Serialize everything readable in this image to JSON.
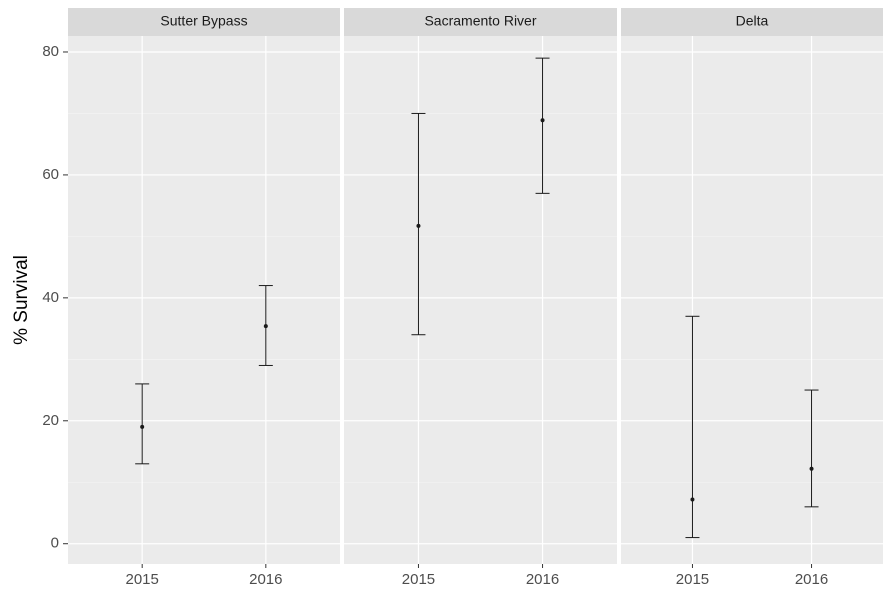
{
  "chart_data": [
    {
      "type": "errorbar",
      "title": "Sutter Bypass",
      "ylabel": "% Survival",
      "categories": [
        "2015",
        "2016"
      ],
      "values": [
        19,
        35.4
      ],
      "lower": [
        13,
        29
      ],
      "upper": [
        26,
        42
      ],
      "color": "#1a1a1a",
      "ylim": [
        -3.3,
        82.6
      ],
      "yticks": [
        0,
        20,
        40,
        60,
        80
      ],
      "grid": true
    },
    {
      "type": "errorbar",
      "title": "Sacramento River",
      "categories": [
        "2015",
        "2016"
      ],
      "values": [
        51.7,
        68.9
      ],
      "lower": [
        34,
        57
      ],
      "upper": [
        70,
        79
      ],
      "color": "#1a1a1a"
    },
    {
      "type": "errorbar",
      "title": "Delta",
      "categories": [
        "2015",
        "2016"
      ],
      "values": [
        7.2,
        12.2
      ],
      "lower": [
        1,
        6
      ],
      "upper": [
        37,
        25
      ],
      "color": "#1a1a1a"
    }
  ]
}
